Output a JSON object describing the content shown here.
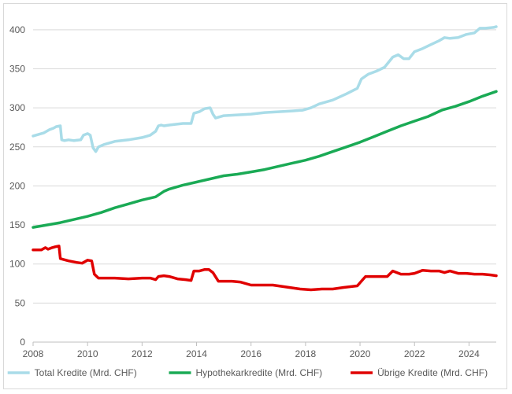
{
  "chart_data": {
    "type": "line",
    "title": "",
    "xlabel": "",
    "ylabel": "",
    "xlim": [
      2008,
      2025
    ],
    "ylim": [
      0,
      420
    ],
    "x_ticks": [
      2008,
      2010,
      2012,
      2014,
      2016,
      2018,
      2020,
      2022,
      2024
    ],
    "y_ticks": [
      0,
      50,
      100,
      150,
      200,
      250,
      300,
      350,
      400
    ],
    "grid": "horizontal",
    "legend_position": "bottom",
    "series": [
      {
        "name": "Total Kredite (Mrd. CHF)",
        "color": "#a9dce8",
        "x": [
          2008.0,
          2008.2,
          2008.4,
          2008.5,
          2008.6,
          2008.75,
          2008.85,
          2009.0,
          2009.05,
          2009.15,
          2009.3,
          2009.5,
          2009.75,
          2009.85,
          2010.0,
          2010.1,
          2010.2,
          2010.3,
          2010.4,
          2010.6,
          2011.0,
          2011.5,
          2012.0,
          2012.3,
          2012.5,
          2012.6,
          2012.7,
          2012.8,
          2013.0,
          2013.5,
          2013.8,
          2013.9,
          2014.1,
          2014.3,
          2014.5,
          2014.6,
          2014.7,
          2015.0,
          2015.5,
          2016.0,
          2016.5,
          2017.0,
          2017.5,
          2017.9,
          2018.2,
          2018.5,
          2019.0,
          2019.5,
          2019.9,
          2020.05,
          2020.3,
          2020.6,
          2020.9,
          2021.2,
          2021.4,
          2021.6,
          2021.8,
          2022.0,
          2022.3,
          2022.6,
          2022.9,
          2023.1,
          2023.3,
          2023.6,
          2023.9,
          2024.2,
          2024.4,
          2024.6,
          2024.9,
          2025.0
        ],
        "values": [
          264,
          266,
          268,
          270,
          272,
          274,
          276,
          277,
          259,
          258,
          259,
          258,
          259,
          265,
          267,
          265,
          249,
          244,
          250,
          253,
          257,
          259,
          262,
          265,
          270,
          277,
          278,
          277,
          278,
          280,
          280,
          293,
          295,
          299,
          300,
          292,
          287,
          290,
          291,
          292,
          294,
          295,
          296,
          297,
          300,
          305,
          310,
          318,
          325,
          337,
          343,
          347,
          352,
          365,
          368,
          363,
          363,
          372,
          376,
          381,
          386,
          390,
          389,
          390,
          394,
          396,
          402,
          402,
          403,
          404
        ]
      },
      {
        "name": "Hypothekarkredite (Mrd. CHF)",
        "color": "#1aaa55",
        "x": [
          2008.0,
          2008.5,
          2009.0,
          2009.5,
          2010.0,
          2010.5,
          2011.0,
          2011.5,
          2012.0,
          2012.5,
          2012.8,
          2013.0,
          2013.5,
          2014.0,
          2014.5,
          2015.0,
          2015.5,
          2016.0,
          2016.5,
          2017.0,
          2017.5,
          2018.0,
          2018.5,
          2019.0,
          2019.5,
          2020.0,
          2020.5,
          2021.0,
          2021.5,
          2022.0,
          2022.5,
          2023.0,
          2023.5,
          2024.0,
          2024.5,
          2025.0
        ],
        "values": [
          147,
          150,
          153,
          157,
          161,
          166,
          172,
          177,
          182,
          186,
          193,
          196,
          201,
          205,
          209,
          213,
          215,
          218,
          221,
          225,
          229,
          233,
          238,
          244,
          250,
          256,
          263,
          270,
          277,
          283,
          289,
          297,
          302,
          308,
          315,
          321
        ]
      },
      {
        "name": "Übrige Kredite (Mrd. CHF)",
        "color": "#e00000",
        "x": [
          2008.0,
          2008.3,
          2008.45,
          2008.55,
          2008.7,
          2008.8,
          2008.95,
          2009.0,
          2009.1,
          2009.3,
          2009.6,
          2009.8,
          2010.0,
          2010.15,
          2010.25,
          2010.4,
          2010.6,
          2011.0,
          2011.5,
          2012.0,
          2012.3,
          2012.5,
          2012.6,
          2012.8,
          2013.0,
          2013.3,
          2013.6,
          2013.8,
          2013.9,
          2014.1,
          2014.3,
          2014.45,
          2014.6,
          2014.8,
          2015.0,
          2015.3,
          2015.6,
          2016.0,
          2016.5,
          2016.8,
          2017.0,
          2017.4,
          2017.8,
          2018.2,
          2018.6,
          2019.0,
          2019.4,
          2019.9,
          2020.0,
          2020.2,
          2020.5,
          2020.8,
          2021.0,
          2021.2,
          2021.5,
          2021.8,
          2022.0,
          2022.3,
          2022.6,
          2022.9,
          2023.1,
          2023.3,
          2023.6,
          2023.9,
          2024.2,
          2024.5,
          2024.8,
          2025.0
        ],
        "values": [
          118,
          118,
          121,
          119,
          121,
          122,
          123,
          107,
          106,
          104,
          102,
          101,
          105,
          104,
          87,
          82,
          82,
          82,
          81,
          82,
          82,
          80,
          84,
          85,
          84,
          81,
          80,
          79,
          91,
          91,
          93,
          93,
          89,
          78,
          78,
          78,
          77,
          73,
          73,
          73,
          72,
          70,
          68,
          67,
          68,
          68,
          70,
          72,
          76,
          84,
          84,
          84,
          84,
          91,
          87,
          87,
          88,
          92,
          91,
          91,
          89,
          91,
          88,
          88,
          87,
          87,
          86,
          85
        ]
      }
    ]
  }
}
